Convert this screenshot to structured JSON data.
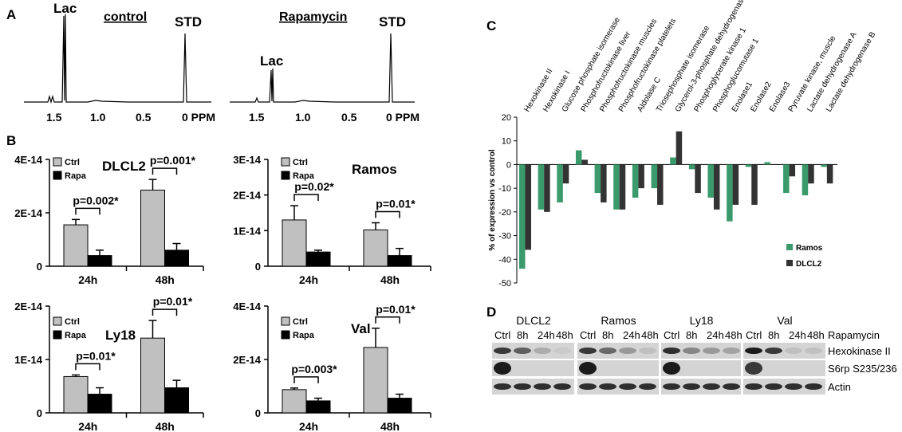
{
  "panel_labels": {
    "a": "A",
    "b": "B",
    "c": "C",
    "d": "D"
  },
  "colors": {
    "ctrl": "#c0c0c0",
    "rapa": "#000000",
    "ramos": "#3a9a6c",
    "dlcl2": "#333333",
    "bracket": "#000000"
  },
  "nmr": {
    "control_title": "control",
    "rapa_title": "Rapamycin",
    "lac_label": "Lac",
    "std_label": "STD",
    "axis_ticks": [
      "1.5",
      "1.0",
      "0.5",
      "0 PPM"
    ]
  },
  "chart_data": [
    {
      "id": "dlcl2",
      "type": "bar",
      "title": "DLCL2",
      "categories": [
        "24h",
        "48h"
      ],
      "series": [
        {
          "name": "Ctrl",
          "values": [
            1.55e-14,
            2.85e-14
          ],
          "errors": [
            2e-15,
            4e-15
          ]
        },
        {
          "name": "Rapa",
          "values": [
            4e-15,
            6e-15
          ],
          "errors": [
            2e-15,
            2.5e-15
          ]
        }
      ],
      "ylim": [
        0,
        4e-14
      ],
      "yticks": [
        0,
        2e-14,
        4e-14
      ],
      "ytick_labels": [
        "0",
        "2E-14",
        "4E-14"
      ],
      "pvalues": [
        "p=0.002*",
        "p=0.001*"
      ],
      "legend": [
        "Ctrl",
        "Rapa"
      ]
    },
    {
      "id": "ramos",
      "type": "bar",
      "title": "Ramos",
      "categories": [
        "24h",
        "48h"
      ],
      "series": [
        {
          "name": "Ctrl",
          "values": [
            1.3e-14,
            1.02e-14
          ],
          "errors": [
            4e-15,
            2e-15
          ]
        },
        {
          "name": "Rapa",
          "values": [
            4e-15,
            3e-15
          ],
          "errors": [
            5e-16,
            2e-15
          ]
        }
      ],
      "ylim": [
        0,
        3e-14
      ],
      "yticks": [
        0,
        1e-14,
        2e-14,
        3e-14
      ],
      "ytick_labels": [
        "0",
        "1E-14",
        "2E-14",
        "3E-14"
      ],
      "pvalues": [
        "p=0.02*",
        "p=0.01*"
      ],
      "legend": [
        "Ctrl",
        "Rapa"
      ]
    },
    {
      "id": "ly18",
      "type": "bar",
      "title": "Ly18",
      "categories": [
        "24h",
        "48h"
      ],
      "series": [
        {
          "name": "Ctrl",
          "values": [
            6.8e-15,
            1.4e-14
          ],
          "errors": [
            3e-16,
            3.3e-15
          ]
        },
        {
          "name": "Rapa",
          "values": [
            3.5e-15,
            4.7e-15
          ],
          "errors": [
            1.2e-15,
            1.4e-15
          ]
        }
      ],
      "ylim": [
        0,
        2e-14
      ],
      "yticks": [
        0,
        1e-14,
        2e-14
      ],
      "ytick_labels": [
        "0",
        "1E-14",
        "2E-14"
      ],
      "pvalues": [
        "p=0.01*",
        "p=0.01*"
      ],
      "legend": [
        "Ctrl",
        "Rapa"
      ]
    },
    {
      "id": "val",
      "type": "bar",
      "title": "Val",
      "categories": [
        "24h",
        "48h"
      ],
      "series": [
        {
          "name": "Ctrl",
          "values": [
            8.7e-15,
            2.45e-14
          ],
          "errors": [
            6e-16,
            7.2e-15
          ]
        },
        {
          "name": "Rapa",
          "values": [
            4.5e-15,
            5.5e-15
          ],
          "errors": [
            1e-15,
            1.5e-15
          ]
        }
      ],
      "ylim": [
        0,
        4e-14
      ],
      "yticks": [
        0,
        2e-14,
        4e-14
      ],
      "ytick_labels": [
        "0",
        "2E-14",
        "4E-14"
      ],
      "pvalues": [
        "p=0.003*",
        "p=0.01*"
      ],
      "legend": [
        "Ctrl",
        "Rapa"
      ]
    },
    {
      "id": "expression",
      "type": "bar",
      "ylabel": "% of expression vs control",
      "ylim": [
        -50,
        20
      ],
      "yticks": [
        -50,
        -40,
        -30,
        -20,
        -10,
        0,
        10,
        20
      ],
      "categories": [
        "Hexokinase II",
        "Hexokinase I",
        "Glucose phosphate isomerase",
        "Phosphofructokinase liver",
        "Phosphofructokinase muscles",
        "Phosphofructokinase platelets",
        "Aldolase C",
        "Triosephosphate isomerase",
        "Glycerol-3-phosphate dehydrogenase",
        "Phosphoglycerate kinase 1",
        "Phosphoglucomutase 1",
        "Enolase1",
        "Enolase2",
        "Enolase3",
        "Pyruvate kinase, muscle",
        "Lactate dehydrogenase A",
        "Lactate dehydrogenase B"
      ],
      "series": [
        {
          "name": "Ramos",
          "values": [
            -44,
            -19,
            -16,
            6,
            -12,
            -19,
            -14,
            -10,
            3,
            -2,
            -14,
            -24,
            -1,
            1,
            -12,
            -13,
            -1
          ]
        },
        {
          "name": "DLCL2",
          "values": [
            -36,
            -20,
            -8,
            2,
            -16,
            -19,
            -10,
            -17,
            14,
            -12,
            -19,
            -17,
            -17,
            0,
            -5,
            -8,
            -8
          ]
        }
      ],
      "legend": [
        "Ramos",
        "DLCL2"
      ]
    }
  ],
  "western": {
    "groups": [
      "DLCL2",
      "Ramos",
      "Ly18",
      "Val"
    ],
    "lanes": [
      "Ctrl",
      "8h",
      "24h",
      "48h"
    ],
    "treatment": "Rapamycin",
    "rows": [
      "Hexokinase II",
      "S6rp S235/236",
      "Actin"
    ]
  }
}
